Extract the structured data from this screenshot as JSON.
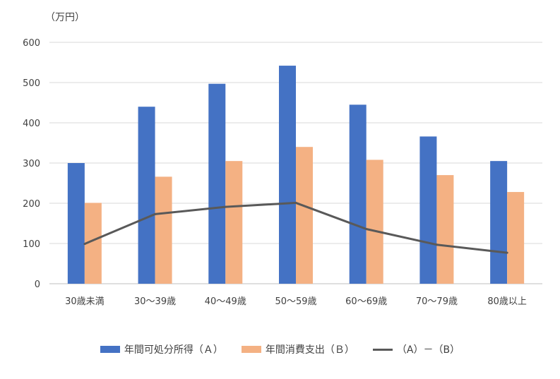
{
  "chart_data": {
    "type": "bar",
    "unit_label": "（万円）",
    "categories": [
      "30歳未満",
      "30～39歳",
      "40～49歳",
      "50～59歳",
      "60～69歳",
      "70～79歳",
      "80歳以上"
    ],
    "ylim": [
      0,
      600
    ],
    "yticks": [
      "0",
      "100",
      "200",
      "300",
      "400",
      "500",
      "600"
    ],
    "grid": true,
    "legend_position": "bottom",
    "series": [
      {
        "name": "年間可処分所得（Ａ）",
        "type": "bar",
        "color": "#4472C4",
        "values": [
          300,
          440,
          497,
          542,
          445,
          366,
          305
        ]
      },
      {
        "name": "年間消費支出（Ｂ）",
        "type": "bar",
        "color": "#F4B183",
        "values": [
          201,
          266,
          305,
          340,
          308,
          270,
          228
        ]
      },
      {
        "name": "（A）－（B）",
        "type": "line",
        "color": "#595959",
        "values": [
          99,
          173,
          191,
          201,
          136,
          97,
          77
        ]
      }
    ]
  }
}
